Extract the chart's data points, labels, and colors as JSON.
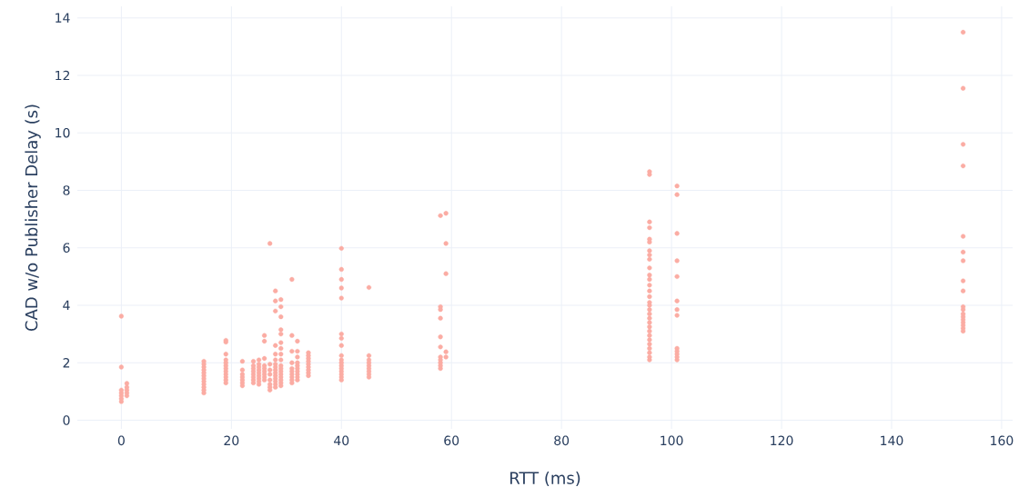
{
  "chart_data": {
    "type": "scatter",
    "xlabel": "RTT (ms)",
    "ylabel": "CAD w/o Publisher Delay (s)",
    "xlim": [
      -8,
      162
    ],
    "ylim": [
      -0.3,
      14.4
    ],
    "xticks": [
      0,
      20,
      40,
      60,
      80,
      100,
      120,
      140,
      160
    ],
    "yticks": [
      0,
      2,
      4,
      6,
      8,
      10,
      12,
      14
    ],
    "grid": true,
    "marker": "circle",
    "color": "#fbaca3",
    "x": [
      0,
      0,
      0,
      0,
      0,
      0,
      0,
      1,
      1,
      1,
      1,
      1,
      15,
      15,
      15,
      15,
      15,
      15,
      15,
      15,
      15,
      15,
      15,
      15,
      19,
      19,
      19,
      19,
      19,
      19,
      19,
      19,
      19,
      19,
      19,
      19,
      22,
      22,
      22,
      22,
      22,
      22,
      22,
      24,
      24,
      24,
      24,
      24,
      24,
      24,
      24,
      25,
      25,
      25,
      25,
      25,
      25,
      25,
      25,
      25,
      26,
      26,
      26,
      26,
      26,
      26,
      26,
      26,
      26,
      27,
      27,
      27,
      27,
      27,
      27,
      27,
      27,
      28,
      28,
      28,
      28,
      28,
      28,
      28,
      28,
      28,
      28,
      28,
      28,
      28,
      28,
      28,
      29,
      29,
      29,
      29,
      29,
      29,
      29,
      29,
      29,
      29,
      29,
      29,
      29,
      29,
      29,
      29,
      29,
      31,
      31,
      31,
      31,
      31,
      31,
      31,
      31,
      31,
      31,
      32,
      32,
      32,
      32,
      32,
      32,
      32,
      32,
      32,
      32,
      34,
      34,
      34,
      34,
      34,
      34,
      34,
      34,
      34,
      40,
      40,
      40,
      40,
      40,
      40,
      40,
      40,
      40,
      40,
      40,
      40,
      40,
      40,
      40,
      40,
      40,
      45,
      45,
      45,
      45,
      45,
      45,
      45,
      45,
      45,
      58,
      58,
      58,
      58,
      58,
      58,
      58,
      58,
      58,
      58,
      58,
      59,
      59,
      59,
      59,
      59,
      96,
      96,
      96,
      96,
      96,
      96,
      96,
      96,
      96,
      96,
      96,
      96,
      96,
      96,
      96,
      96,
      96,
      96,
      96,
      96,
      96,
      96,
      96,
      96,
      96,
      96,
      96,
      96,
      96,
      96,
      101,
      101,
      101,
      101,
      101,
      101,
      101,
      101,
      101,
      101,
      101,
      101,
      101,
      153,
      153,
      153,
      153,
      153,
      153,
      153,
      153,
      153,
      153,
      153,
      153,
      153,
      153,
      153,
      153,
      153,
      153
    ],
    "values": [
      0.65,
      0.75,
      0.85,
      0.95,
      1.05,
      1.85,
      3.62,
      0.85,
      0.95,
      1.05,
      1.15,
      1.28,
      0.95,
      1.05,
      1.15,
      1.25,
      1.35,
      1.45,
      1.55,
      1.65,
      1.75,
      1.85,
      1.95,
      2.05,
      1.3,
      1.4,
      1.5,
      1.6,
      1.7,
      1.8,
      1.9,
      2.0,
      2.1,
      2.3,
      2.72,
      2.78,
      1.2,
      1.3,
      1.4,
      1.5,
      1.6,
      1.75,
      2.05,
      1.3,
      1.4,
      1.5,
      1.6,
      1.7,
      1.8,
      1.9,
      2.05,
      1.25,
      1.35,
      1.45,
      1.55,
      1.65,
      1.75,
      1.85,
      1.95,
      2.1,
      1.4,
      1.5,
      1.6,
      1.7,
      1.8,
      1.9,
      2.15,
      2.75,
      2.95,
      1.05,
      1.15,
      1.25,
      1.4,
      1.6,
      1.75,
      1.95,
      6.15,
      1.15,
      1.25,
      1.35,
      1.45,
      1.55,
      1.65,
      1.75,
      1.85,
      1.95,
      2.1,
      2.3,
      2.6,
      3.8,
      4.15,
      4.5,
      1.2,
      1.3,
      1.4,
      1.5,
      1.6,
      1.7,
      1.8,
      1.9,
      2.1,
      2.3,
      2.5,
      2.7,
      3.0,
      3.15,
      3.6,
      3.95,
      4.2,
      1.3,
      1.4,
      1.5,
      1.6,
      1.7,
      1.8,
      2.0,
      2.4,
      2.95,
      4.9,
      1.4,
      1.5,
      1.6,
      1.7,
      1.8,
      1.9,
      2.0,
      2.2,
      2.4,
      2.75,
      1.55,
      1.65,
      1.75,
      1.85,
      1.95,
      2.05,
      2.15,
      2.25,
      2.35,
      1.4,
      1.5,
      1.6,
      1.7,
      1.8,
      1.9,
      2.0,
      2.1,
      2.25,
      2.6,
      2.85,
      3.0,
      4.25,
      4.6,
      4.9,
      5.25,
      5.98,
      1.5,
      1.6,
      1.7,
      1.8,
      1.9,
      2.0,
      2.1,
      2.25,
      4.62,
      1.8,
      1.9,
      2.0,
      2.1,
      2.2,
      2.55,
      2.9,
      3.55,
      3.85,
      3.95,
      7.12,
      2.2,
      2.38,
      5.1,
      6.15,
      7.2,
      2.1,
      2.2,
      2.35,
      2.5,
      2.65,
      2.8,
      2.95,
      3.1,
      3.25,
      3.4,
      3.55,
      3.7,
      3.85,
      4.0,
      4.1,
      4.3,
      4.5,
      4.7,
      4.9,
      5.05,
      5.3,
      5.6,
      5.75,
      5.9,
      6.2,
      6.3,
      6.7,
      6.9,
      8.55,
      8.65,
      2.1,
      2.2,
      2.3,
      2.4,
      2.5,
      3.65,
      3.85,
      4.15,
      5.0,
      5.55,
      6.5,
      7.85,
      8.15,
      3.1,
      3.2,
      3.3,
      3.4,
      3.5,
      3.6,
      3.7,
      3.85,
      3.95,
      4.5,
      4.85,
      5.55,
      5.85,
      6.4,
      8.85,
      9.6,
      11.55,
      13.5
    ]
  }
}
